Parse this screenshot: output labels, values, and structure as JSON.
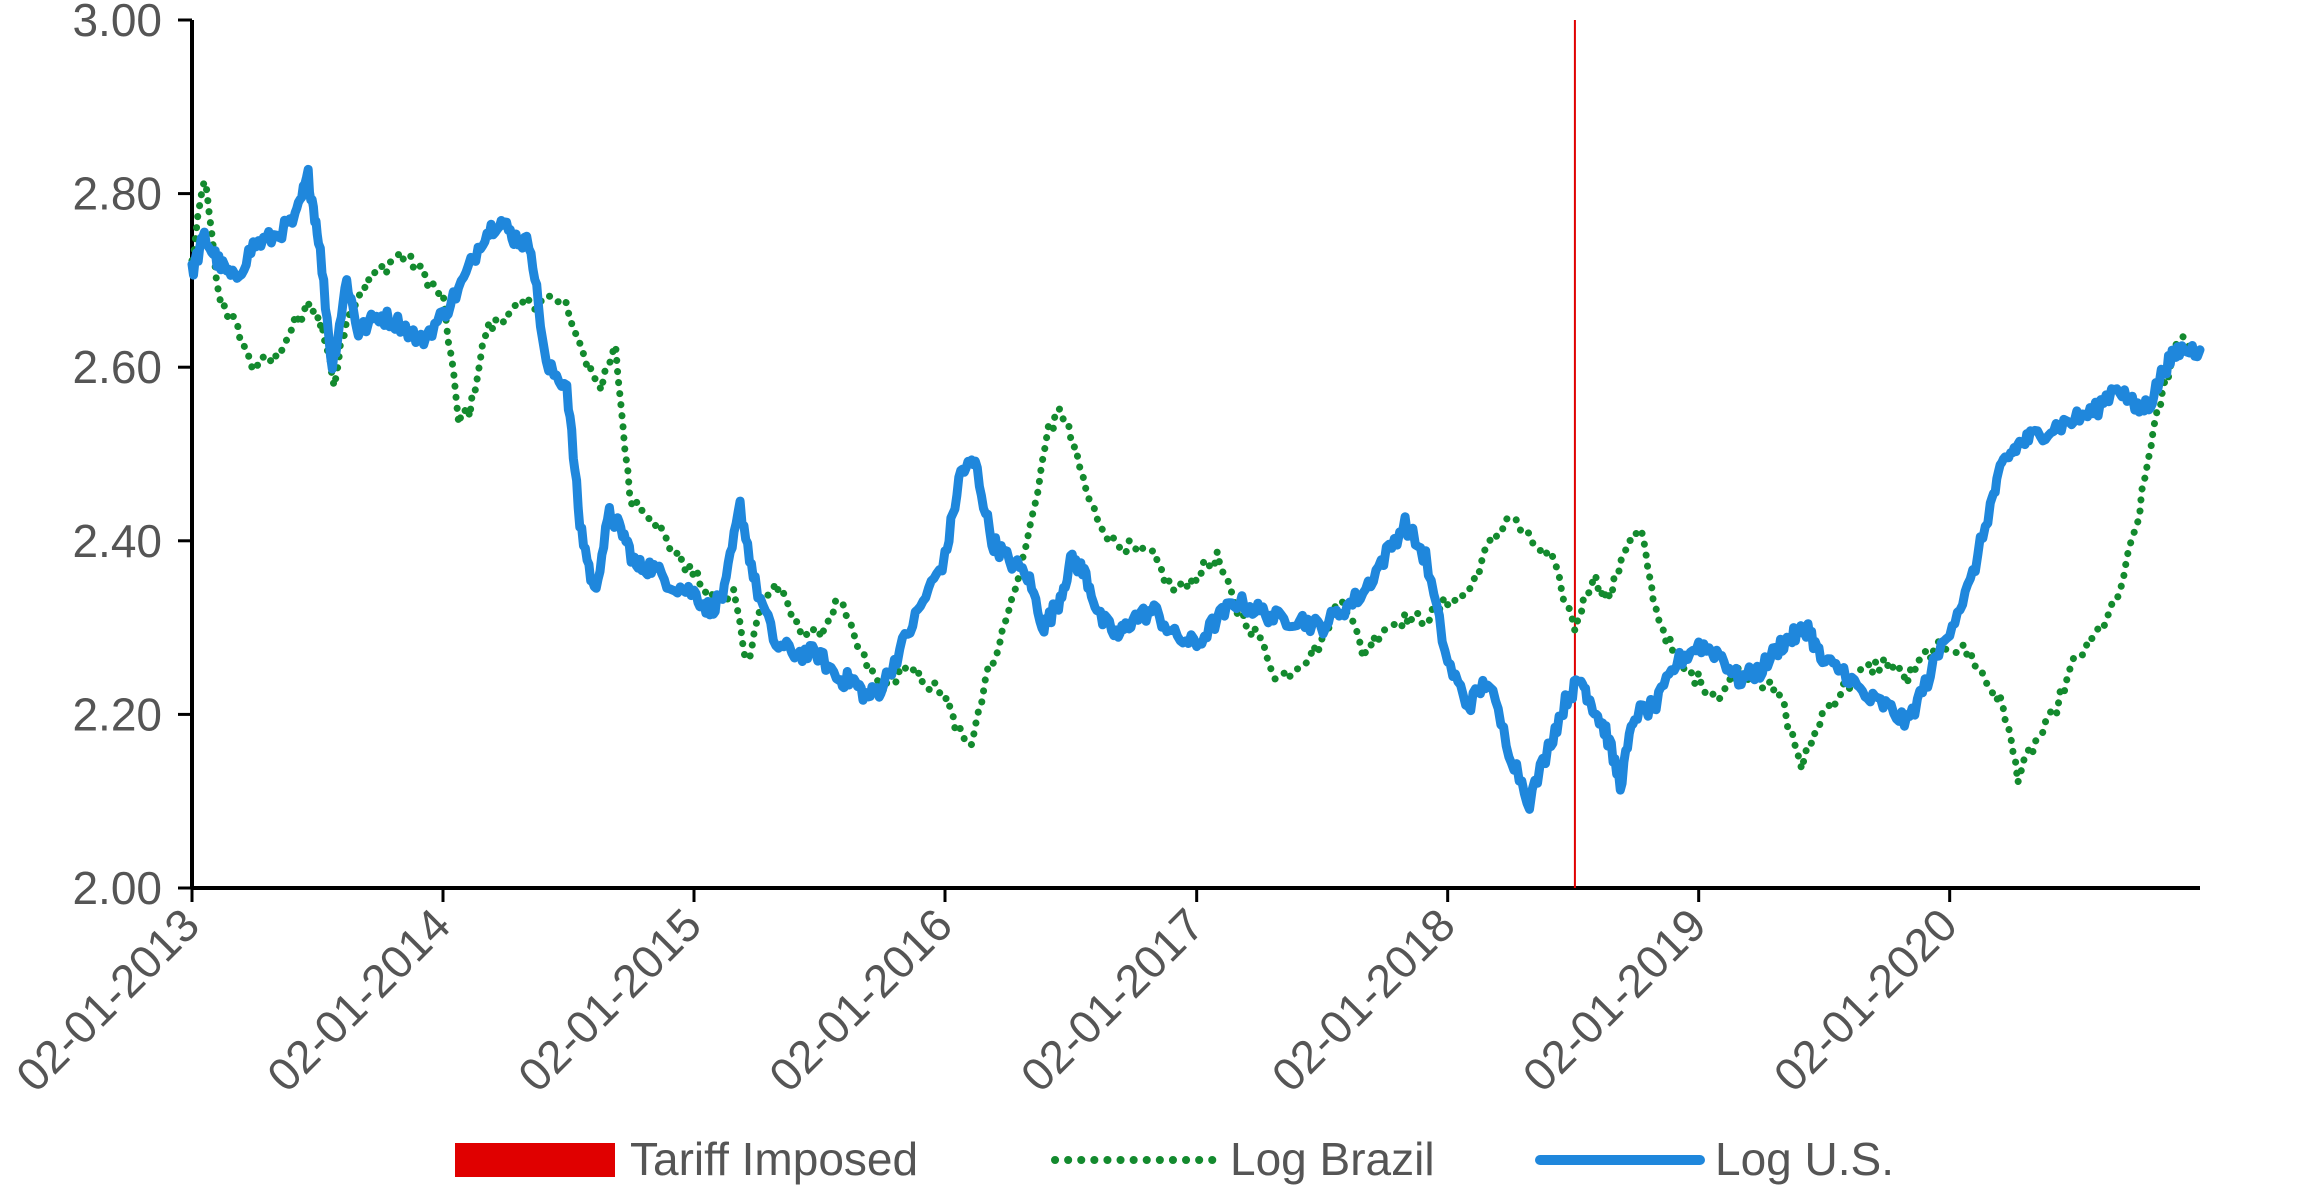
{
  "chart_data": {
    "type": "line",
    "title": "",
    "xlabel": "",
    "ylabel": "",
    "ylim": [
      2.0,
      3.0
    ],
    "yticks": [
      "2.00",
      "2.20",
      "2.40",
      "2.60",
      "2.80",
      "3.00"
    ],
    "xlim": [
      "2013-01-02",
      "2020-12-31"
    ],
    "xticks": [
      {
        "date": "2013-01-02",
        "label": "02-01-2013"
      },
      {
        "date": "2014-01-02",
        "label": "02-01-2014"
      },
      {
        "date": "2015-01-02",
        "label": "02-01-2015"
      },
      {
        "date": "2016-01-02",
        "label": "02-01-2016"
      },
      {
        "date": "2017-01-02",
        "label": "02-01-2017"
      },
      {
        "date": "2018-01-02",
        "label": "02-01-2018"
      },
      {
        "date": "2019-01-02",
        "label": "02-01-2019"
      },
      {
        "date": "2020-01-02",
        "label": "02-01-2020"
      }
    ],
    "grid": false,
    "legend_position": "bottom",
    "tariff_date": "2018-07-06",
    "colors": {
      "tariff": "#e00000",
      "brazil": "#138a2e",
      "us": "#1f87dc",
      "axis": "#000000",
      "text": "#555555"
    },
    "series": [
      {
        "name": "Log Brazil",
        "style": "dotted",
        "x": [
          "2013-01-02",
          "2013-01-20",
          "2013-02-10",
          "2013-03-05",
          "2013-04-01",
          "2013-05-01",
          "2013-06-01",
          "2013-06-20",
          "2013-07-10",
          "2013-07-28",
          "2013-08-15",
          "2013-09-05",
          "2013-10-01",
          "2013-11-01",
          "2013-12-01",
          "2014-01-02",
          "2014-01-25",
          "2014-02-10",
          "2014-03-05",
          "2014-04-01",
          "2014-05-01",
          "2014-06-01",
          "2014-07-01",
          "2014-08-01",
          "2014-08-20",
          "2014-09-10",
          "2014-10-01",
          "2014-11-01",
          "2014-12-01",
          "2015-01-02",
          "2015-02-01",
          "2015-03-01",
          "2015-03-20",
          "2015-04-10",
          "2015-05-01",
          "2015-06-01",
          "2015-07-01",
          "2015-08-01",
          "2015-09-01",
          "2015-10-01",
          "2015-11-01",
          "2015-12-01",
          "2016-01-02",
          "2016-01-20",
          "2016-02-10",
          "2016-03-01",
          "2016-04-01",
          "2016-05-01",
          "2016-06-01",
          "2016-06-20",
          "2016-07-10",
          "2016-08-01",
          "2016-09-01",
          "2016-10-01",
          "2016-11-01",
          "2016-12-01",
          "2017-01-02",
          "2017-02-01",
          "2017-03-01",
          "2017-04-01",
          "2017-05-01",
          "2017-06-01",
          "2017-07-01",
          "2017-08-01",
          "2017-09-01",
          "2017-10-01",
          "2017-11-01",
          "2017-12-01",
          "2018-01-02",
          "2018-02-01",
          "2018-03-01",
          "2018-04-01",
          "2018-05-01",
          "2018-06-01",
          "2018-07-06",
          "2018-08-01",
          "2018-08-25",
          "2018-09-15",
          "2018-10-10",
          "2018-11-01",
          "2018-12-01",
          "2019-01-02",
          "2019-02-01",
          "2019-03-01",
          "2019-04-01",
          "2019-05-01",
          "2019-06-01",
          "2019-07-01",
          "2019-08-01",
          "2019-09-01",
          "2019-10-01",
          "2019-11-01",
          "2019-12-01",
          "2020-01-02",
          "2020-02-01",
          "2020-03-01",
          "2020-03-20",
          "2020-04-10",
          "2020-05-01",
          "2020-06-01",
          "2020-07-01",
          "2020-08-01",
          "2020-09-01",
          "2020-10-01",
          "2020-10-20",
          "2020-11-10",
          "2020-12-01",
          "2020-12-31"
        ],
        "values": [
          2.72,
          2.82,
          2.68,
          2.65,
          2.6,
          2.61,
          2.65,
          2.67,
          2.65,
          2.58,
          2.66,
          2.69,
          2.71,
          2.73,
          2.71,
          2.68,
          2.54,
          2.55,
          2.64,
          2.66,
          2.67,
          2.68,
          2.67,
          2.6,
          2.58,
          2.62,
          2.45,
          2.43,
          2.39,
          2.36,
          2.33,
          2.34,
          2.26,
          2.33,
          2.35,
          2.3,
          2.29,
          2.33,
          2.27,
          2.23,
          2.25,
          2.24,
          2.22,
          2.18,
          2.17,
          2.24,
          2.31,
          2.4,
          2.53,
          2.55,
          2.5,
          2.44,
          2.4,
          2.39,
          2.38,
          2.34,
          2.36,
          2.38,
          2.32,
          2.29,
          2.24,
          2.26,
          2.28,
          2.34,
          2.27,
          2.3,
          2.31,
          2.31,
          2.33,
          2.34,
          2.39,
          2.43,
          2.4,
          2.38,
          2.3,
          2.36,
          2.33,
          2.39,
          2.41,
          2.32,
          2.26,
          2.24,
          2.22,
          2.25,
          2.24,
          2.22,
          2.14,
          2.2,
          2.23,
          2.25,
          2.26,
          2.24,
          2.27,
          2.28,
          2.27,
          2.23,
          2.21,
          2.13,
          2.16,
          2.2,
          2.26,
          2.29,
          2.33,
          2.42,
          2.51,
          2.58,
          2.64,
          2.61
        ]
      },
      {
        "name": "Log U.S.",
        "style": "solid",
        "x": [
          "2013-01-02",
          "2013-01-20",
          "2013-02-10",
          "2013-03-05",
          "2013-04-01",
          "2013-05-01",
          "2013-06-01",
          "2013-06-20",
          "2013-07-05",
          "2013-07-25",
          "2013-08-15",
          "2013-09-01",
          "2013-10-01",
          "2013-11-01",
          "2013-12-01",
          "2014-01-02",
          "2014-02-01",
          "2014-03-01",
          "2014-03-25",
          "2014-04-15",
          "2014-05-10",
          "2014-06-01",
          "2014-07-01",
          "2014-07-20",
          "2014-08-10",
          "2014-09-01",
          "2014-09-20",
          "2014-10-10",
          "2014-11-01",
          "2014-12-01",
          "2015-01-02",
          "2015-01-25",
          "2015-02-15",
          "2015-03-10",
          "2015-04-01",
          "2015-05-01",
          "2015-06-01",
          "2015-07-01",
          "2015-08-01",
          "2015-08-20",
          "2015-09-10",
          "2015-10-01",
          "2015-11-01",
          "2015-12-01",
          "2016-01-02",
          "2016-01-25",
          "2016-02-15",
          "2016-03-10",
          "2016-04-01",
          "2016-05-01",
          "2016-05-25",
          "2016-06-15",
          "2016-07-05",
          "2016-07-25",
          "2016-08-15",
          "2016-09-10",
          "2016-10-01",
          "2016-11-01",
          "2016-12-01",
          "2017-01-02",
          "2017-02-01",
          "2017-03-01",
          "2017-04-01",
          "2017-05-01",
          "2017-06-01",
          "2017-07-01",
          "2017-08-01",
          "2017-09-01",
          "2017-10-01",
          "2017-11-01",
          "2017-12-01",
          "2018-01-02",
          "2018-02-01",
          "2018-03-01",
          "2018-04-01",
          "2018-05-01",
          "2018-06-01",
          "2018-06-25",
          "2018-07-15",
          "2018-08-01",
          "2018-08-20",
          "2018-09-10",
          "2018-10-01",
          "2018-11-01",
          "2018-12-01",
          "2019-01-02",
          "2019-02-01",
          "2019-03-01",
          "2019-04-01",
          "2019-05-01",
          "2019-05-20",
          "2019-06-10",
          "2019-07-01",
          "2019-08-01",
          "2019-09-01",
          "2019-10-01",
          "2019-11-01",
          "2019-12-01",
          "2020-01-02",
          "2020-02-01",
          "2020-03-01",
          "2020-03-20",
          "2020-04-10",
          "2020-05-01",
          "2020-06-01",
          "2020-07-01",
          "2020-08-01",
          "2020-09-01",
          "2020-10-01",
          "2020-10-20",
          "2020-11-10",
          "2020-12-01",
          "2020-12-31"
        ],
        "values": [
          2.71,
          2.75,
          2.72,
          2.7,
          2.74,
          2.75,
          2.77,
          2.82,
          2.75,
          2.6,
          2.7,
          2.64,
          2.66,
          2.65,
          2.63,
          2.66,
          2.7,
          2.75,
          2.77,
          2.75,
          2.74,
          2.6,
          2.58,
          2.42,
          2.34,
          2.43,
          2.41,
          2.37,
          2.37,
          2.35,
          2.34,
          2.32,
          2.34,
          2.44,
          2.35,
          2.28,
          2.27,
          2.27,
          2.24,
          2.24,
          2.22,
          2.23,
          2.28,
          2.33,
          2.38,
          2.48,
          2.49,
          2.4,
          2.38,
          2.36,
          2.3,
          2.33,
          2.38,
          2.36,
          2.31,
          2.29,
          2.31,
          2.32,
          2.29,
          2.28,
          2.31,
          2.33,
          2.32,
          2.31,
          2.31,
          2.3,
          2.32,
          2.34,
          2.38,
          2.42,
          2.38,
          2.26,
          2.21,
          2.24,
          2.16,
          2.1,
          2.17,
          2.22,
          2.24,
          2.21,
          2.18,
          2.12,
          2.2,
          2.21,
          2.26,
          2.28,
          2.27,
          2.24,
          2.25,
          2.28,
          2.29,
          2.3,
          2.26,
          2.25,
          2.22,
          2.21,
          2.19,
          2.24,
          2.3,
          2.35,
          2.44,
          2.49,
          2.51,
          2.52,
          2.53,
          2.54,
          2.55,
          2.58,
          2.55,
          2.56,
          2.6,
          2.62,
          2.62
        ]
      }
    ],
    "legend": [
      {
        "label": "Tariff Imposed",
        "kind": "bar",
        "color": "#e00000"
      },
      {
        "label": "Log Brazil",
        "kind": "dotted",
        "color": "#138a2e"
      },
      {
        "label": "Log U.S.",
        "kind": "solid",
        "color": "#1f87dc"
      }
    ]
  }
}
